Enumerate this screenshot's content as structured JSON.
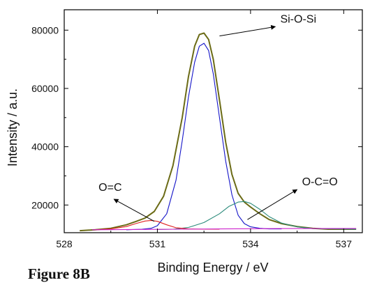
{
  "figure_label": "Figure 8B",
  "chart_data": {
    "type": "line",
    "xlabel": "Binding Energy / eV",
    "ylabel": "Intensity / a.u.",
    "xlim": [
      528,
      537.6
    ],
    "ylim": [
      10500,
      87000
    ],
    "x_ticks": [
      528,
      531,
      534,
      537
    ],
    "y_ticks": [
      20000,
      40000,
      60000,
      80000
    ],
    "grid": false,
    "annotations": [
      {
        "text": "Si-O-Si",
        "arrow_from": [
          533.0,
          78000
        ],
        "arrow_to": [
          534.8,
          81200
        ]
      },
      {
        "text": "O-C=O",
        "arrow_from": [
          533.9,
          15000
        ],
        "arrow_to": [
          535.5,
          25300
        ]
      },
      {
        "text": "O=C",
        "arrow_from": [
          530.9,
          14400
        ],
        "arrow_to": [
          529.6,
          22000
        ]
      }
    ],
    "series": [
      {
        "color": "#6b6b16",
        "x": [
          528.5,
          529.0,
          529.5,
          530.0,
          530.3,
          530.6,
          530.9,
          531.2,
          531.5,
          531.8,
          532.0,
          532.2,
          532.35,
          532.5,
          532.65,
          532.8,
          533.0,
          533.2,
          533.4,
          533.6,
          533.8,
          534.0,
          534.3,
          534.6,
          535.0,
          535.5,
          536.0,
          536.5,
          537.0,
          537.4
        ],
        "y": [
          11200,
          11500,
          12000,
          13200,
          14300,
          15500,
          17800,
          23000,
          33500,
          50000,
          64000,
          74500,
          78500,
          79000,
          76800,
          70000,
          56000,
          41500,
          30500,
          24000,
          21000,
          19300,
          17000,
          15000,
          13600,
          12600,
          12000,
          11700,
          11700,
          11700
        ]
      },
      {
        "color": "#1414c8",
        "x": [
          530.0,
          530.5,
          530.8,
          531.0,
          531.3,
          531.6,
          531.8,
          532.0,
          532.2,
          532.35,
          532.5,
          532.65,
          532.8,
          533.0,
          533.2,
          533.4,
          533.6,
          533.8,
          534.0,
          534.3,
          534.6,
          535.0
        ],
        "y": [
          11500,
          11700,
          12000,
          12900,
          17000,
          28500,
          42000,
          57000,
          69000,
          74500,
          75500,
          73000,
          65000,
          50000,
          35000,
          23500,
          16500,
          13600,
          12500,
          12000,
          11800,
          11800
        ]
      },
      {
        "color": "#2a8a7a",
        "x": [
          531.0,
          531.5,
          532.0,
          532.5,
          533.0,
          533.3,
          533.6,
          533.8,
          534.0,
          534.3,
          534.6,
          535.0,
          535.5,
          536.0,
          537.4
        ],
        "y": [
          11600,
          11700,
          12300,
          14000,
          17000,
          19500,
          21000,
          21200,
          20600,
          18500,
          16000,
          13800,
          12500,
          11900,
          11700
        ]
      },
      {
        "color": "#e02020",
        "x": [
          529.0,
          529.5,
          530.0,
          530.3,
          530.6,
          530.8,
          531.0,
          531.3,
          531.6,
          532.0,
          532.5,
          533.0
        ],
        "y": [
          11500,
          11800,
          12600,
          13600,
          14500,
          14700,
          14400,
          13200,
          12200,
          11800,
          11700,
          11700
        ]
      },
      {
        "color": "#cc22cc",
        "x": [
          528.9,
          531.0,
          533.0,
          535.0,
          537.4
        ],
        "y": [
          11500,
          11650,
          11800,
          11900,
          11950
        ]
      }
    ]
  }
}
